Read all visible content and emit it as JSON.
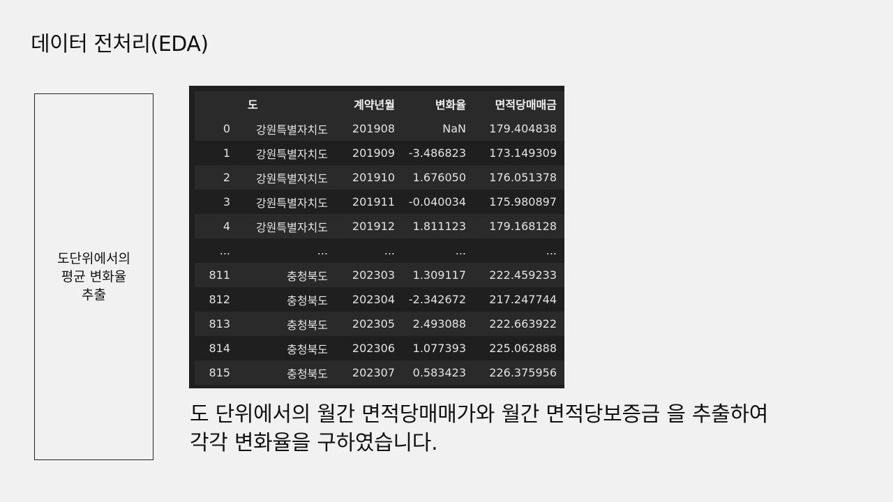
{
  "slide": {
    "title": "데이터 전처리(EDA)"
  },
  "side_box": {
    "lines": [
      "도단위에서의",
      "평균 변화율",
      "추출"
    ]
  },
  "dataframe": {
    "columns": [
      "",
      "도",
      "계약년월",
      "변화율",
      "면적당매매금"
    ],
    "rows": [
      {
        "index": "0",
        "do": "강원특별자치도",
        "ym": "201908",
        "rate": "NaN",
        "price": "179.404838"
      },
      {
        "index": "1",
        "do": "강원특별자치도",
        "ym": "201909",
        "rate": "-3.486823",
        "price": "173.149309"
      },
      {
        "index": "2",
        "do": "강원특별자치도",
        "ym": "201910",
        "rate": "1.676050",
        "price": "176.051378"
      },
      {
        "index": "3",
        "do": "강원특별자치도",
        "ym": "201911",
        "rate": "-0.040034",
        "price": "175.980897"
      },
      {
        "index": "4",
        "do": "강원특별자치도",
        "ym": "201912",
        "rate": "1.811123",
        "price": "179.168128"
      },
      {
        "index": "...",
        "do": "...",
        "ym": "...",
        "rate": "...",
        "price": "..."
      },
      {
        "index": "811",
        "do": "충청북도",
        "ym": "202303",
        "rate": "1.309117",
        "price": "222.459233"
      },
      {
        "index": "812",
        "do": "충청북도",
        "ym": "202304",
        "rate": "-2.342672",
        "price": "217.247744"
      },
      {
        "index": "813",
        "do": "충청북도",
        "ym": "202305",
        "rate": "2.493088",
        "price": "222.663922"
      },
      {
        "index": "814",
        "do": "충청북도",
        "ym": "202306",
        "rate": "1.077393",
        "price": "225.062888"
      },
      {
        "index": "815",
        "do": "충청북도",
        "ym": "202307",
        "rate": "0.583423",
        "price": "226.375956"
      }
    ]
  },
  "caption": {
    "line1": "도 단위에서의 월간 면적당매매가와 월간 면적당보증금 을 추출하여",
    "line2": "각각 변화율을 구하였습니다."
  }
}
